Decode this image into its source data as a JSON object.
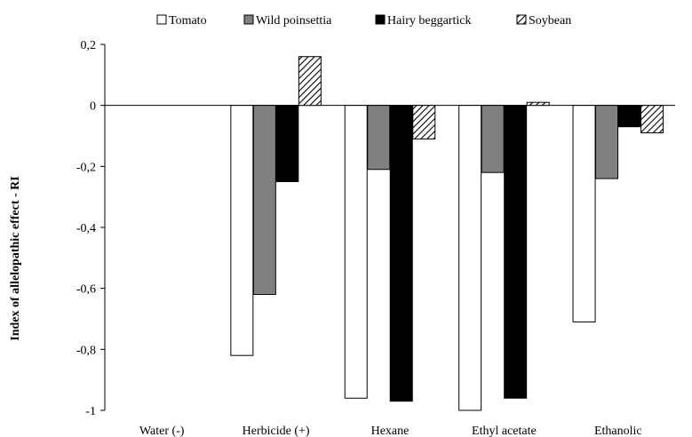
{
  "chart_data": {
    "type": "bar",
    "title": "",
    "xlabel": "",
    "ylabel": "Index of allelopathic effect - RI",
    "ylim": [
      -1,
      0.2
    ],
    "yticks": [
      0.2,
      0,
      -0.2,
      -0.4,
      -0.6,
      -0.8,
      -1
    ],
    "ytick_labels": [
      "0,2",
      "0",
      "-0,2",
      "-0,4",
      "-0,6",
      "-0,8",
      "-1"
    ],
    "grid": false,
    "legend_position": "top",
    "categories": [
      "Water (-)",
      "Herbicide (+)",
      "Hexane",
      "Ethyl acetate",
      "Ethanolic"
    ],
    "series": [
      {
        "name": "Tomato",
        "fill": "#ffffff",
        "pattern": "none",
        "values": [
          0,
          -0.82,
          -0.96,
          -1.0,
          -0.71
        ]
      },
      {
        "name": "Wild poinsettia",
        "fill": "#808080",
        "pattern": "none",
        "values": [
          0,
          -0.62,
          -0.21,
          -0.22,
          -0.24
        ]
      },
      {
        "name": "Hairy beggartick",
        "fill": "#000000",
        "pattern": "none",
        "values": [
          0,
          -0.25,
          -0.97,
          -0.96,
          -0.07
        ]
      },
      {
        "name": "Soybean",
        "fill": "#ffffff",
        "pattern": "diagonal-hatch",
        "values": [
          0,
          0.16,
          -0.11,
          0.01,
          -0.09
        ]
      }
    ]
  }
}
